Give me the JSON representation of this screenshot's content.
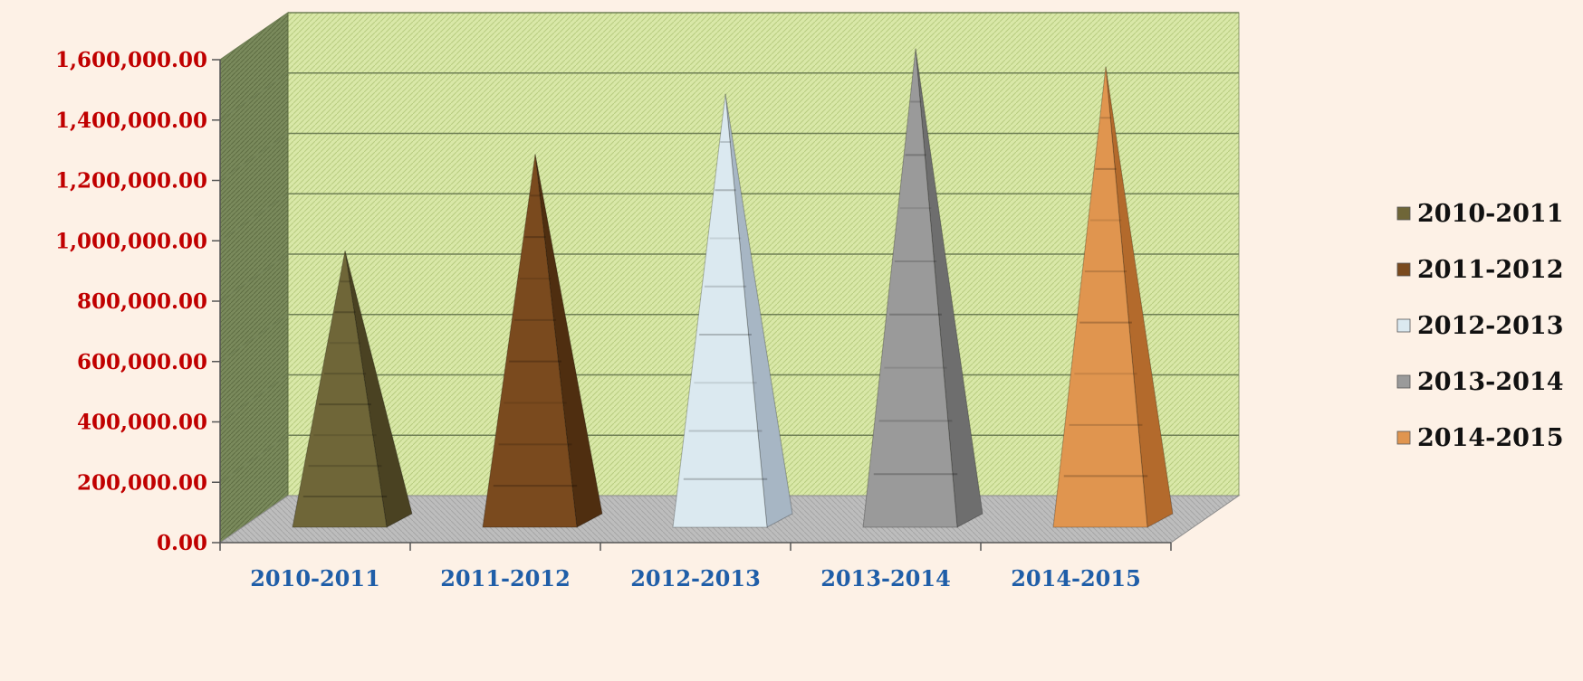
{
  "chart_data": {
    "type": "bar",
    "bar_shape": "pyramid",
    "style": "3d",
    "categories": [
      "2010-2011",
      "2011-2012",
      "2012-2013",
      "2013-2014",
      "2014-2015"
    ],
    "values": [
      880000,
      1200000,
      1400000,
      1550000,
      1490000
    ],
    "ylim": [
      0,
      1600000
    ],
    "yticks": [
      "0.00",
      "200,000.00",
      "400,000.00",
      "600,000.00",
      "800,000.00",
      "1,000,000.00",
      "1,200,000.00",
      "1,400,000.00",
      "1,600,000.00"
    ],
    "title": "",
    "xlabel": "",
    "ylabel": "",
    "grid": true,
    "legend": {
      "position": "right",
      "items": [
        "2010-2011",
        "2011-2012",
        "2012-2013",
        "2013-2014",
        "2014-2015"
      ]
    },
    "colors": {
      "wall": "#d9e8a8",
      "side_wall": "#7a8a5c",
      "floor": "#b9b9b9",
      "gridline": "#6f7f55",
      "ytick_text": "#c00000",
      "xtick_text": "#1f5ea8",
      "legend_text": "#111111",
      "series": [
        "#6f6638",
        "#7a4a1e",
        "#dbe9f0",
        "#9a9a9a",
        "#e0954f"
      ],
      "series_dark": [
        "#4a4222",
        "#4f2e10",
        "#a7b6c4",
        "#6e6e6e",
        "#b36a2c"
      ]
    }
  }
}
